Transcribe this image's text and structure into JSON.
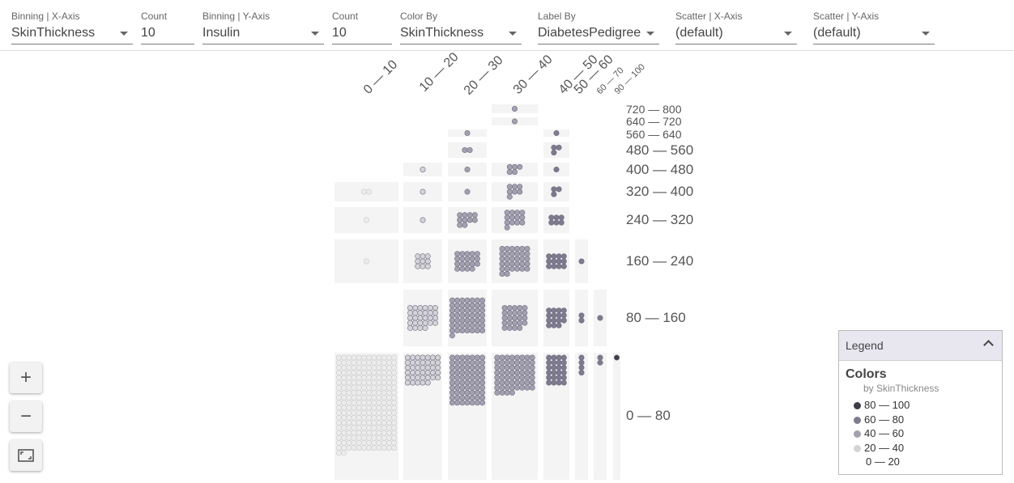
{
  "toolbar": {
    "fields": [
      {
        "label": "Binning | X-Axis",
        "value": "SkinThickness",
        "dropdown": true
      },
      {
        "label": "Count",
        "value": "10",
        "dropdown": false
      },
      {
        "label": "Binning | Y-Axis",
        "value": "Insulin",
        "dropdown": true
      },
      {
        "label": "Count",
        "value": "10",
        "dropdown": false
      },
      {
        "label": "Color By",
        "value": "SkinThickness",
        "dropdown": true
      },
      {
        "label": "Label By",
        "value": "DiabetesPedigree",
        "dropdown": true
      },
      {
        "label": "Scatter | X-Axis",
        "value": "(default)",
        "dropdown": true
      },
      {
        "label": "Scatter | Y-Axis",
        "value": "(default)",
        "dropdown": true
      }
    ]
  },
  "zoom": {
    "in_label": "+",
    "out_label": "−",
    "fit_icon": "fit-screen-icon"
  },
  "legend": {
    "title": "Legend",
    "heading": "Colors",
    "subtitle": "by SkinThickness",
    "items": [
      {
        "label": "80 — 100",
        "color": "#3d3d48"
      },
      {
        "label": "60 — 80",
        "color": "#7e7b8e"
      },
      {
        "label": "40 — 60",
        "color": "#a3a1b0"
      },
      {
        "label": "20 — 40",
        "color": "#d4d4d8"
      },
      {
        "label": "0 — 20",
        "color": "#ffffff"
      }
    ]
  },
  "chart_data": {
    "type": "scatter",
    "x_field": "SkinThickness",
    "y_field": "Insulin",
    "x_bins": [
      "0 — 10",
      "10 — 20",
      "20 — 30",
      "30 — 40",
      "40 — 50",
      "50 — 60",
      "60 — 70",
      "90 — 100"
    ],
    "y_bins": [
      "0 — 80",
      "80 — 160",
      "160 — 240",
      "240 — 320",
      "320 — 400",
      "400 — 480",
      "480 — 560",
      "560 — 640",
      "640 — 720",
      "720 — 800"
    ],
    "counts": [
      [
        230,
        0,
        1,
        1,
        2,
        0,
        0,
        0,
        0,
        0
      ],
      [
        40,
        28,
        9,
        1,
        1,
        1,
        0,
        0,
        0,
        0
      ],
      [
        70,
        50,
        19,
        10,
        1,
        1,
        2,
        1,
        0,
        0
      ],
      [
        60,
        24,
        32,
        13,
        7,
        5,
        0,
        0,
        1,
        1
      ],
      [
        24,
        15,
        12,
        6,
        3,
        1,
        3,
        1,
        0,
        0
      ],
      [
        4,
        2,
        1,
        0,
        0,
        0,
        0,
        0,
        0,
        0
      ],
      [
        2,
        1,
        0,
        0,
        0,
        0,
        0,
        0,
        0,
        0
      ],
      [
        1,
        0,
        0,
        0,
        0,
        0,
        0,
        0,
        0,
        0
      ]
    ],
    "color_by": "SkinThickness",
    "bin_colors": [
      "#ececec",
      "#d4d4d8",
      "#a3a1b0",
      "#a3a1b0",
      "#7e7b8e",
      "#7e7b8e",
      "#7e7b8e",
      "#3d3d48"
    ]
  }
}
